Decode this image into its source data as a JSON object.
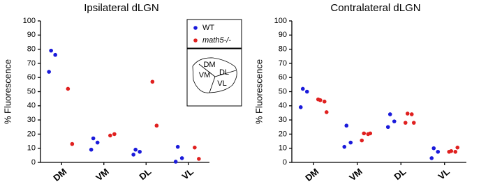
{
  "chart_data": [
    {
      "type": "scatter",
      "title": "Ipsilateral dLGN",
      "y_label": "% Fluorescence",
      "categories": [
        "DM",
        "VM",
        "DL",
        "VL"
      ],
      "ylim": [
        0,
        100
      ],
      "yticks": [
        0,
        10,
        20,
        30,
        40,
        50,
        60,
        70,
        80,
        90,
        100
      ],
      "legend": true,
      "inset_labels": [
        "DM",
        "DL",
        "VM",
        "VL"
      ],
      "series": [
        {
          "name": "WT",
          "color": "#1a1adb",
          "values": [
            [
              79,
              76,
              64
            ],
            [
              17,
              14,
              9
            ],
            [
              9,
              7.5,
              5.5
            ],
            [
              11,
              3,
              0.5
            ]
          ]
        },
        {
          "name": "math5-/-",
          "color": "#e0201f",
          "values": [
            [
              52,
              13
            ],
            [
              19,
              20
            ],
            [
              57,
              26
            ],
            [
              10.5,
              2.5
            ]
          ]
        }
      ]
    },
    {
      "type": "scatter",
      "title": "Contralateral dLGN",
      "y_label": "% Fluorescence",
      "categories": [
        "DM",
        "VM",
        "DL",
        "VL"
      ],
      "ylim": [
        0,
        100
      ],
      "yticks": [
        0,
        10,
        20,
        30,
        40,
        50,
        60,
        70,
        80,
        90,
        100
      ],
      "legend": false,
      "series": [
        {
          "name": "WT",
          "color": "#1a1adb",
          "values": [
            [
              52,
              50,
              39
            ],
            [
              26,
              14,
              11
            ],
            [
              34,
              29,
              25
            ],
            [
              10,
              7.5,
              3
            ]
          ]
        },
        {
          "name": "math5-/-",
          "color": "#e0201f",
          "values": [
            [
              44,
              43,
              44.5,
              35.5
            ],
            [
              20.5,
              20,
              15.5,
              20.5
            ],
            [
              34.5,
              34,
              28,
              28
            ],
            [
              8,
              7.5,
              7.5,
              10.5
            ]
          ]
        }
      ]
    }
  ]
}
